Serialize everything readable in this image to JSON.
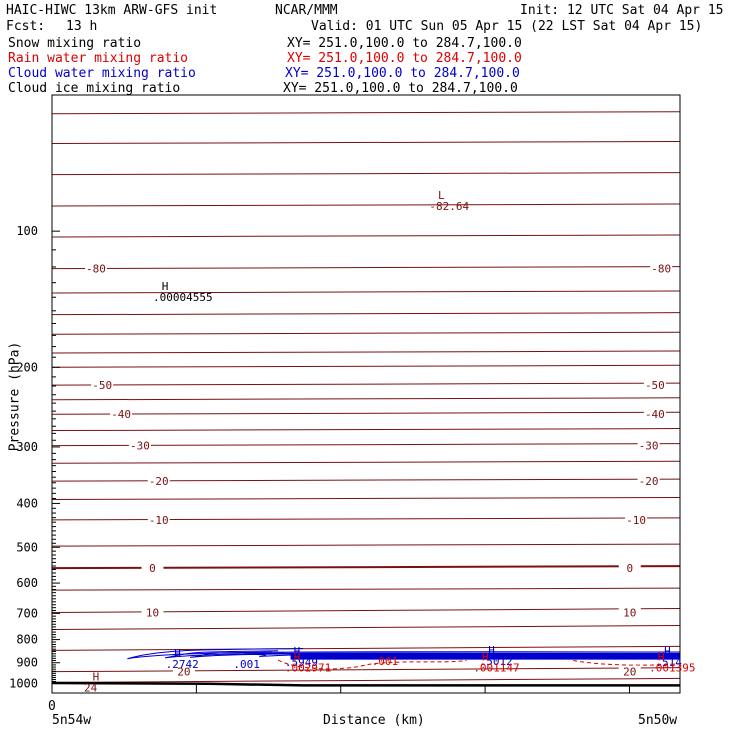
{
  "header": {
    "title_left": "HAIC-HIWC 13km ARW-GFS init",
    "org": "NCAR/MMM",
    "init": "Init: 12 UTC Sat 04 Apr 15",
    "fcst_label": "Fcst:",
    "fcst_value": "13 h",
    "valid": "Valid: 01 UTC Sun 05 Apr 15 (22 LST Sat 04 Apr 15)"
  },
  "fields": [
    {
      "name": "Snow mixing ratio",
      "xy": "XY= 251.0,100.0 to 284.7,100.0",
      "color": "#000000"
    },
    {
      "name": "Rain water mixing ratio",
      "xy": "XY= 251.0,100.0 to 284.7,100.0",
      "color": "#dd0000"
    },
    {
      "name": "Cloud water mixing ratio",
      "xy": "XY= 251.0,100.0 to 284.7,100.0",
      "color": "#0000cc"
    },
    {
      "name": "Cloud ice mixing ratio",
      "xy": "XY= 251.0,100.0 to 284.7,100.0",
      "color": "#000000"
    }
  ],
  "colors": {
    "temperature": "#7a1010",
    "rain": "#dd0000",
    "cloud": "#0000cc",
    "terrain": "#000000"
  },
  "chart_data": {
    "type": "contour cross-section",
    "xlabel": "Distance (km)",
    "ylabel": "Pressure (hPa)",
    "ylim": [
      1050,
      50
    ],
    "y_scale": "log",
    "y_ticks": [
      100,
      200,
      300,
      400,
      500,
      600,
      700,
      800,
      900,
      1000
    ],
    "x_tick_labels": [
      "0"
    ],
    "x_endpoint_labels": [
      "5n54w",
      "5n50w"
    ],
    "temperature_labels": [
      {
        "text": "-80",
        "x": 0.07,
        "p": 121
      },
      {
        "text": "-80",
        "x": 0.97,
        "p": 121
      },
      {
        "text": "-50",
        "x": 0.08,
        "p": 219
      },
      {
        "text": "-50",
        "x": 0.96,
        "p": 219
      },
      {
        "text": "-40",
        "x": 0.11,
        "p": 254
      },
      {
        "text": "-40",
        "x": 0.96,
        "p": 254
      },
      {
        "text": "-30",
        "x": 0.14,
        "p": 298
      },
      {
        "text": "-30",
        "x": 0.95,
        "p": 298
      },
      {
        "text": "-20",
        "x": 0.17,
        "p": 357
      },
      {
        "text": "-20",
        "x": 0.95,
        "p": 357
      },
      {
        "text": "-10",
        "x": 0.17,
        "p": 435
      },
      {
        "text": "-10",
        "x": 0.93,
        "p": 435
      },
      {
        "text": "0",
        "x": 0.16,
        "p": 556
      },
      {
        "text": "0",
        "x": 0.92,
        "p": 556
      },
      {
        "text": "10",
        "x": 0.16,
        "p": 697
      },
      {
        "text": "10",
        "x": 0.92,
        "p": 697
      },
      {
        "text": "20",
        "x": 0.21,
        "p": 942
      },
      {
        "text": "20",
        "x": 0.92,
        "p": 942
      }
    ],
    "extrema": [
      {
        "mark": "L",
        "value": "-82.64",
        "x": 0.62,
        "p": 85,
        "color": "temperature"
      },
      {
        "mark": "H",
        "value": ".00004555",
        "x": 0.18,
        "p": 135,
        "color": "terrain"
      },
      {
        "mark": "H",
        "value": ".2742",
        "x": 0.2,
        "p": 875,
        "color": "cloud"
      },
      {
        "mark": "H",
        "value": ".5949",
        "x": 0.39,
        "p": 865,
        "color": "cloud"
      },
      {
        "mark": "H",
        "value": ".5012",
        "x": 0.7,
        "p": 862,
        "color": "cloud"
      },
      {
        "mark": "H",
        "value": ".514",
        "x": 0.98,
        "p": 865,
        "color": "cloud"
      },
      {
        "mark": "H",
        "value": ".002971",
        "x": 0.39,
        "p": 890,
        "color": "rain"
      },
      {
        "mark": "H",
        "value": ".001147",
        "x": 0.69,
        "p": 890,
        "color": "rain"
      },
      {
        "mark": "H",
        "value": ".001395",
        "x": 0.97,
        "p": 890,
        "color": "rain"
      },
      {
        "mark": "H",
        "value": "24",
        "x": 0.07,
        "p": 985,
        "color": "temperature"
      }
    ],
    "contour_labels": [
      {
        "text": ".001",
        "x": 0.31,
        "p": 905,
        "color": "cloud"
      },
      {
        "text": ".001",
        "x": 0.53,
        "p": 893,
        "color": "rain"
      }
    ],
    "terrain_surface_hpa": [
      [
        0,
        998
      ],
      [
        0.25,
        1002
      ],
      [
        0.4,
        1010
      ],
      [
        1,
        1010
      ]
    ]
  }
}
